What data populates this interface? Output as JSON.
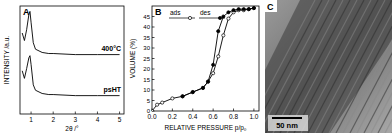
{
  "chart_data": [
    {
      "type": "line",
      "title": "A",
      "x_label": "2θ /°",
      "y_label": "INTENSITY /a.u.",
      "xlim": [
        0.5,
        5.2
      ],
      "xticks": [
        1,
        2,
        3,
        4,
        5
      ],
      "ylim": [
        0,
        100
      ],
      "yticks": [],
      "tick_labels": "x",
      "grid": false,
      "legend": "inline",
      "series": [
        {
          "name": "400°C",
          "color": "#000000",
          "marker": "none",
          "line_style": "solid",
          "x": [
            0.6,
            0.7,
            0.8,
            0.9,
            0.95,
            1.0,
            1.1,
            1.2,
            1.5,
            1.8,
            2,
            3,
            4,
            5
          ],
          "values": [
            75,
            68,
            78,
            92,
            95,
            85,
            66,
            60,
            57,
            56,
            56,
            55,
            55,
            55
          ]
        },
        {
          "name": "psHT",
          "color": "#000000",
          "marker": "none",
          "line_style": "solid",
          "x": [
            0.6,
            0.7,
            0.8,
            0.9,
            0.95,
            1.0,
            1.1,
            1.2,
            1.5,
            1.8,
            2,
            3,
            4,
            5
          ],
          "values": [
            40,
            33,
            42,
            52,
            54,
            46,
            27,
            22,
            19,
            18,
            18,
            17,
            17,
            17
          ]
        }
      ]
    },
    {
      "type": "line",
      "title": "B",
      "x_label": "RELATIVE PRESSURE p/p₀",
      "y_label": "VOLUME (%)",
      "xlim": [
        0,
        1.05
      ],
      "xticks": [
        {
          "value": 0,
          "label": "0.0"
        },
        {
          "value": 0.2,
          "label": "0.2"
        },
        {
          "value": 0.4,
          "label": "0.4"
        },
        {
          "value": 0.6,
          "label": "0.6"
        },
        {
          "value": 0.8,
          "label": "0.8"
        },
        {
          "value": 1,
          "label": "1.0"
        }
      ],
      "ylim": [
        0,
        50
      ],
      "yticks": [
        0,
        5,
        10,
        15,
        20,
        25,
        30,
        35,
        40,
        45
      ],
      "grid": false,
      "legend": "upper left",
      "series": [
        {
          "name": "ads",
          "color": "#000000",
          "marker": "circle_open",
          "line_style": "solid",
          "x": [
            0,
            0.05,
            0.1,
            0.2,
            0.3,
            0.4,
            0.5,
            0.55,
            0.6,
            0.65,
            0.7,
            0.75,
            0.8,
            0.85,
            0.9,
            0.95,
            1.0
          ],
          "values": [
            0,
            3,
            4,
            6,
            7,
            9,
            11,
            14,
            18,
            26,
            36,
            44,
            47,
            48,
            48,
            48.5,
            49
          ]
        },
        {
          "name": "des",
          "color": "#000000",
          "marker": "circle_filled",
          "line_style": "solid",
          "x": [
            1.0,
            0.95,
            0.9,
            0.85,
            0.8,
            0.75,
            0.7,
            0.65,
            0.6,
            0.55,
            0.5,
            0.4,
            0.3
          ],
          "values": [
            49,
            48.5,
            48.5,
            48.5,
            48,
            47,
            45,
            38,
            22,
            14,
            11,
            9,
            7
          ]
        }
      ]
    }
  ],
  "image_panel": {
    "label": "C",
    "scale_bar": "50 nm"
  }
}
